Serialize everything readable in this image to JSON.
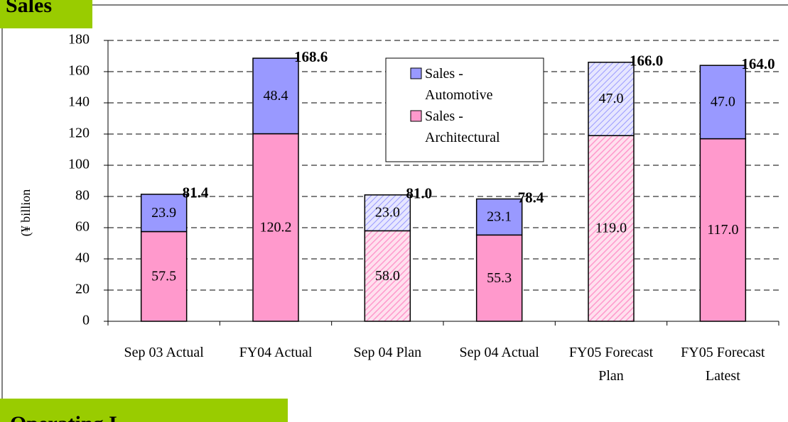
{
  "header": {
    "title": "Sales",
    "next_title": "Operating I"
  },
  "chart_data": {
    "type": "bar",
    "stacked": true,
    "y_label": "(¥ billion",
    "categories": [
      "Sep 03 Actual",
      "FY04 Actual",
      "Sep 04 Plan",
      "Sep 04 Actual",
      "FY05 Forecast Plan",
      "FY05 Forecast Latest"
    ],
    "series": [
      {
        "name": "Sales - Architectural",
        "color": "#ff99cc",
        "values": [
          57.5,
          120.2,
          58.0,
          55.3,
          119.0,
          117.0
        ],
        "value_labels": [
          "57.5",
          "120.2",
          "58.0",
          "55.3",
          "119.0",
          "117.0"
        ]
      },
      {
        "name": "Sales - Automotive",
        "color": "#9999ff",
        "values": [
          23.9,
          48.4,
          23.0,
          23.1,
          47.0,
          47.0
        ],
        "value_labels": [
          "23.9",
          "48.4",
          "23.0",
          "23.1",
          "47.0",
          "47.0"
        ]
      }
    ],
    "totals": [
      81.4,
      168.6,
      81.0,
      78.4,
      166.0,
      164.0
    ],
    "total_labels": [
      "81.4",
      "168.6",
      "81.0",
      "78.4",
      "166.0",
      "164.0"
    ],
    "hatched": [
      false,
      false,
      true,
      false,
      true,
      false
    ],
    "ylim": [
      0,
      180
    ],
    "yticks": [
      0,
      20,
      40,
      60,
      80,
      100,
      120,
      140,
      160,
      180
    ],
    "grid": true,
    "legend": "top"
  }
}
